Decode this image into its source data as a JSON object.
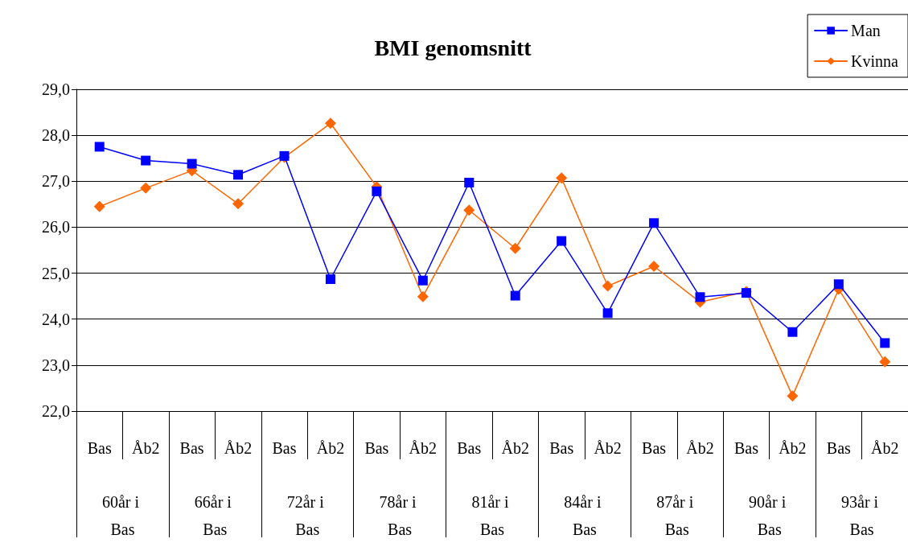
{
  "chart_data": {
    "type": "line",
    "title": "BMI genomsnitt",
    "categories": [
      "Bas",
      "Åb2",
      "Bas",
      "Åb2",
      "Bas",
      "Åb2",
      "Bas",
      "Åb2",
      "Bas",
      "Åb2",
      "Bas",
      "Åb2",
      "Bas",
      "Åb2",
      "Bas",
      "Åb2",
      "Bas",
      "Åb2"
    ],
    "annotations": [
      "60år i Bas",
      "66år i Bas",
      "72år i Bas",
      "78år i Bas",
      "81år i Bas",
      "84år i Bas",
      "87år i Bas",
      "90år i Bas",
      "93år i Bas"
    ],
    "series": [
      {
        "name": "Man",
        "color": "#0000ff",
        "marker": "square",
        "values": [
          27.75,
          27.45,
          27.38,
          27.14,
          27.55,
          24.87,
          26.78,
          24.84,
          26.97,
          24.51,
          25.7,
          24.13,
          26.09,
          24.48,
          24.57,
          23.72,
          24.76,
          23.48
        ]
      },
      {
        "name": "Kvinna",
        "color": "#ff6600",
        "marker": "diamond",
        "values": [
          26.45,
          26.85,
          27.23,
          26.51,
          27.52,
          28.26,
          26.88,
          24.49,
          26.37,
          25.54,
          27.07,
          24.72,
          25.15,
          24.37,
          24.6,
          22.33,
          24.65,
          23.07
        ]
      }
    ],
    "ylim": [
      22,
      29
    ],
    "yticks": [
      {
        "value": 22,
        "label": "22,0"
      },
      {
        "value": 23,
        "label": "23,0"
      },
      {
        "value": 24,
        "label": "24,0"
      },
      {
        "value": 25,
        "label": "25,0"
      },
      {
        "value": 26,
        "label": "26,0"
      },
      {
        "value": 27,
        "label": "27,0"
      },
      {
        "value": 28,
        "label": "28,0"
      },
      {
        "value": 29,
        "label": "29,0"
      }
    ],
    "grid": "y",
    "legend": "top right",
    "line_style": "solid"
  }
}
